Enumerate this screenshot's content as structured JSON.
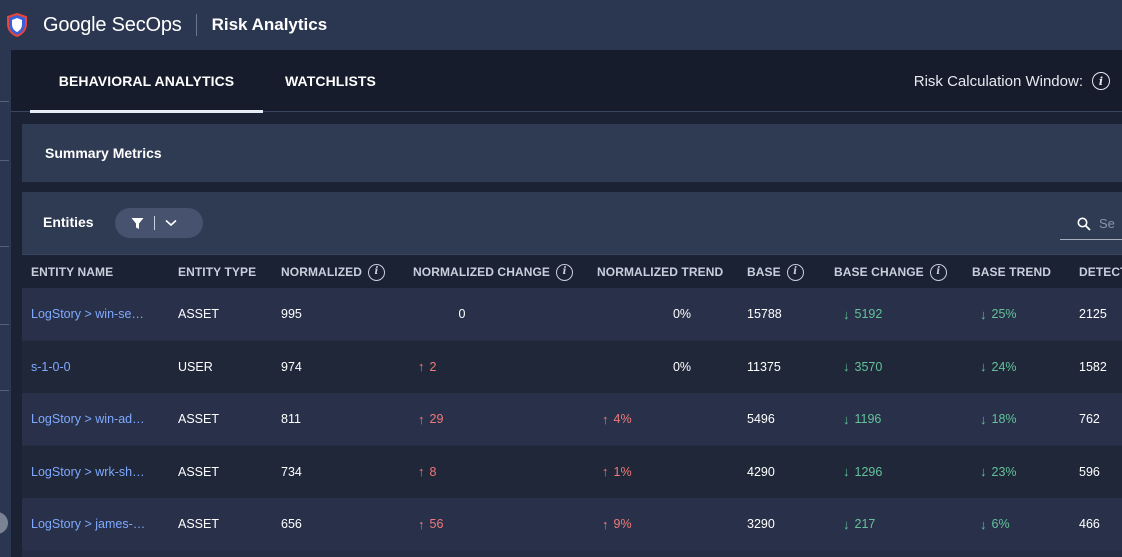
{
  "header": {
    "brand": "Google SecOps",
    "app_name": "Risk Analytics",
    "logo_icon": "shield-icon"
  },
  "tabs": [
    {
      "label": "BEHAVIORAL ANALYTICS",
      "active": true
    },
    {
      "label": "WATCHLISTS",
      "active": false
    }
  ],
  "risk_window_label": "Risk Calculation Window:",
  "summary": {
    "title": "Summary Metrics"
  },
  "entities": {
    "title": "Entities",
    "search_placeholder": "Se"
  },
  "columns": [
    {
      "label": "ENTITY NAME",
      "info": false
    },
    {
      "label": "ENTITY TYPE",
      "info": false
    },
    {
      "label": "NORMALIZED",
      "info": true
    },
    {
      "label": "NORMALIZED CHANGE",
      "info": true
    },
    {
      "label": "NORMALIZED TREND",
      "info": false
    },
    {
      "label": "BASE",
      "info": true
    },
    {
      "label": "BASE CHANGE",
      "info": true
    },
    {
      "label": "BASE TREND",
      "info": false
    },
    {
      "label": "DETECT",
      "info": false
    }
  ],
  "rows": [
    {
      "name": "LogStory > win-se…",
      "type": "ASSET",
      "normalized": "995",
      "norm_change": "0",
      "norm_change_dir": "none",
      "norm_trend": "0%",
      "norm_trend_dir": "none",
      "base": "15788",
      "base_change": "5192",
      "base_trend": "25%",
      "detect": "2125"
    },
    {
      "name": "s-1-0-0",
      "type": "USER",
      "normalized": "974",
      "norm_change": "2",
      "norm_change_dir": "up",
      "norm_trend": "0%",
      "norm_trend_dir": "none",
      "base": "11375",
      "base_change": "3570",
      "base_trend": "24%",
      "detect": "1582"
    },
    {
      "name": "LogStory > win-ad…",
      "type": "ASSET",
      "normalized": "811",
      "norm_change": "29",
      "norm_change_dir": "up",
      "norm_trend": "4%",
      "norm_trend_dir": "up",
      "base": "5496",
      "base_change": "1196",
      "base_trend": "18%",
      "detect": "762"
    },
    {
      "name": "LogStory > wrk-sh…",
      "type": "ASSET",
      "normalized": "734",
      "norm_change": "8",
      "norm_change_dir": "up",
      "norm_trend": "1%",
      "norm_trend_dir": "up",
      "base": "4290",
      "base_change": "1296",
      "base_trend": "23%",
      "detect": "596"
    },
    {
      "name": "LogStory > james-…",
      "type": "ASSET",
      "normalized": "656",
      "norm_change": "56",
      "norm_change_dir": "up",
      "norm_trend": "9%",
      "norm_trend_dir": "up",
      "base": "3290",
      "base_change": "217",
      "base_trend": "6%",
      "detect": "466"
    }
  ],
  "colors": {
    "up": "#f07a7a",
    "down": "#63c29a",
    "link": "#7fa9ff"
  }
}
